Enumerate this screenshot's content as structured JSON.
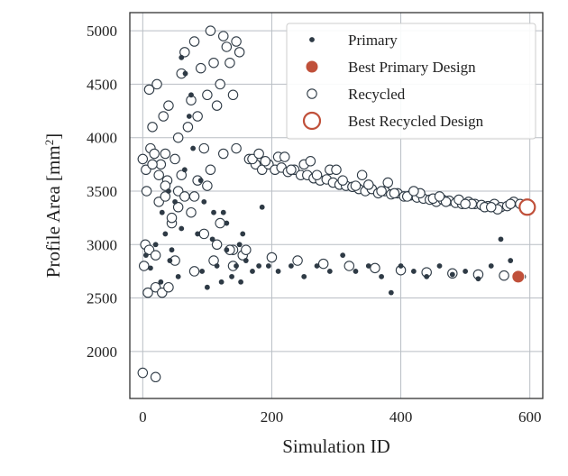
{
  "chart_data": {
    "type": "scatter",
    "xlabel": "Simulation ID",
    "ylabel": "Profile Area [mm",
    "ylabel_sup": "2",
    "ylabel_close": "]",
    "xlim": [
      -20,
      620
    ],
    "ylim": [
      1560,
      5170
    ],
    "xticks": [
      0,
      200,
      400,
      600
    ],
    "yticks": [
      2000,
      2500,
      3000,
      3500,
      4000,
      4500,
      5000
    ],
    "grid": true,
    "legend_position": "top-right",
    "legend": [
      {
        "key": "primary",
        "label": "Primary"
      },
      {
        "key": "best_primary",
        "label": "Best Primary Design"
      },
      {
        "key": "recycled",
        "label": "Recycled"
      },
      {
        "key": "best_recycled",
        "label": "Best Recycled Design"
      }
    ],
    "colors": {
      "primary": "#2e3a45",
      "best": "#c0503a",
      "recycled_fill": "#ffffff",
      "recycled_edge": "#2e3a45",
      "grid": "#b9bec4",
      "axes": "#333333"
    },
    "series": [
      {
        "name": "Primary",
        "marker": "small-filled-dot",
        "x": [
          5,
          12,
          20,
          28,
          35,
          42,
          50,
          55,
          60,
          66,
          72,
          78,
          85,
          92,
          100,
          108,
          115,
          122,
          130,
          138,
          145,
          152,
          160,
          170,
          180,
          195,
          210,
          230,
          250,
          270,
          290,
          310,
          330,
          350,
          370,
          385,
          400,
          420,
          440,
          460,
          480,
          500,
          520,
          540,
          555,
          570,
          590,
          30,
          45,
          60,
          75,
          90,
          110,
          130,
          150,
          40,
          65,
          95,
          125,
          155,
          185
        ],
        "y": [
          2900,
          2780,
          3000,
          2650,
          3100,
          2850,
          3400,
          2700,
          4750,
          4600,
          4200,
          3900,
          3100,
          2750,
          2600,
          3050,
          2800,
          2650,
          2950,
          2700,
          2800,
          2650,
          2850,
          2750,
          2800,
          2800,
          2750,
          2800,
          2700,
          2800,
          2750,
          2900,
          2750,
          2800,
          2700,
          2550,
          2800,
          2750,
          2700,
          2800,
          2720,
          2750,
          2680,
          2800,
          3050,
          2850,
          2700,
          3300,
          2950,
          3150,
          4400,
          3600,
          3300,
          3200,
          3000,
          3500,
          3700,
          3400,
          3300,
          3100,
          3350
        ]
      },
      {
        "name": "Recycled",
        "marker": "hollow-circle",
        "x": [
          0,
          2,
          4,
          6,
          8,
          10,
          12,
          15,
          18,
          20,
          22,
          25,
          28,
          30,
          32,
          35,
          38,
          40,
          45,
          50,
          55,
          60,
          65,
          70,
          75,
          80,
          85,
          90,
          95,
          100,
          105,
          110,
          115,
          120,
          125,
          130,
          135,
          140,
          145,
          150,
          10,
          20,
          40,
          60,
          80,
          100,
          120,
          140,
          35,
          55,
          75,
          95,
          115,
          135,
          155,
          165,
          175,
          185,
          195,
          205,
          215,
          225,
          235,
          245,
          255,
          265,
          275,
          285,
          295,
          305,
          315,
          325,
          335,
          345,
          355,
          365,
          375,
          385,
          395,
          405,
          415,
          425,
          435,
          445,
          455,
          465,
          475,
          485,
          495,
          505,
          515,
          525,
          535,
          545,
          555,
          565,
          575,
          585,
          170,
          190,
          210,
          230,
          250,
          270,
          290,
          310,
          330,
          350,
          370,
          390,
          410,
          430,
          450,
          470,
          490,
          510,
          530,
          550,
          570,
          180,
          220,
          260,
          300,
          340,
          380,
          420,
          460,
          500,
          540,
          160,
          200,
          240,
          280,
          320,
          360,
          400,
          440,
          480,
          520,
          560,
          0,
          5,
          15,
          25,
          35,
          45,
          55,
          65,
          85,
          105,
          125,
          145,
          20,
          50,
          80,
          110,
          140
        ],
        "y": [
          1800,
          2800,
          3000,
          3500,
          2550,
          2950,
          3900,
          4100,
          3850,
          2600,
          4500,
          3400,
          3750,
          2550,
          4200,
          3450,
          3600,
          4300,
          3200,
          3800,
          4000,
          4600,
          4800,
          4100,
          4350,
          4900,
          4200,
          4650,
          3900,
          4400,
          5000,
          4700,
          4300,
          4500,
          4950,
          4850,
          4700,
          4400,
          4900,
          4800,
          4450,
          2900,
          2600,
          3650,
          3450,
          3550,
          3200,
          2950,
          3850,
          3500,
          3300,
          3100,
          3000,
          2950,
          2900,
          3800,
          3750,
          3700,
          3750,
          3700,
          3720,
          3680,
          3700,
          3650,
          3650,
          3620,
          3600,
          3610,
          3580,
          3560,
          3550,
          3540,
          3520,
          3500,
          3520,
          3480,
          3500,
          3470,
          3480,
          3450,
          3460,
          3440,
          3430,
          3420,
          3400,
          3420,
          3410,
          3390,
          3380,
          3400,
          3380,
          3370,
          3360,
          3380,
          3350,
          3360,
          3400,
          3380,
          3800,
          3780,
          3820,
          3700,
          3750,
          3650,
          3700,
          3600,
          3550,
          3560,
          3500,
          3480,
          3450,
          3480,
          3430,
          3400,
          3420,
          3380,
          3350,
          3330,
          3380,
          3850,
          3820,
          3780,
          3700,
          3650,
          3580,
          3500,
          3450,
          3380,
          3350,
          2950,
          2880,
          2850,
          2820,
          2800,
          2780,
          2760,
          2740,
          2730,
          2720,
          2710,
          3800,
          3700,
          3750,
          3650,
          3550,
          3250,
          3350,
          3450,
          3600,
          3700,
          3850,
          3900,
          1760,
          2850,
          2750,
          2850,
          2800
        ]
      }
    ],
    "best_points": [
      {
        "name": "Best Primary Design",
        "x": 582,
        "y": 2700
      },
      {
        "name": "Best Recycled Design",
        "x": 596,
        "y": 3350
      }
    ]
  }
}
